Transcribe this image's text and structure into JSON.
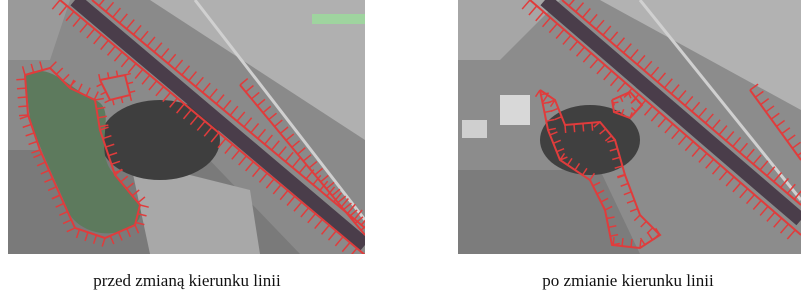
{
  "figure": {
    "panels": [
      {
        "caption": "przed zmianą kierunku linii"
      },
      {
        "caption": "po zmianie kierunku linii"
      }
    ]
  }
}
